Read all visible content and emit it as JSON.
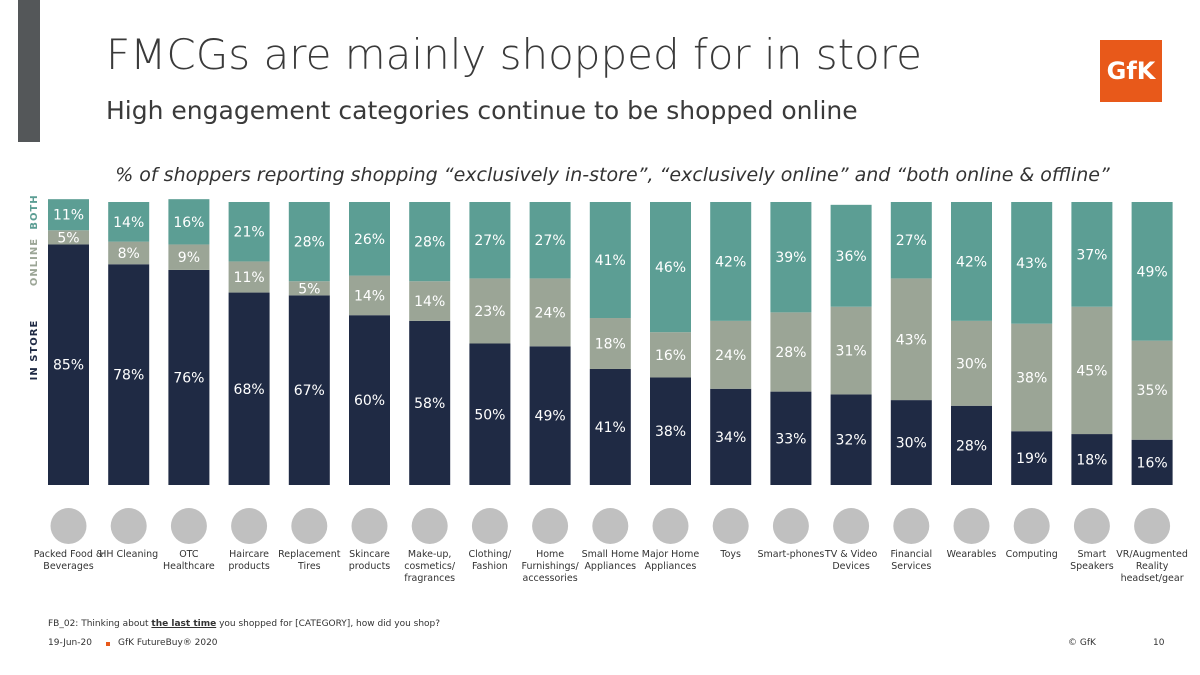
{
  "header": {
    "title": "FMCGs are mainly shopped for in store",
    "subtitle": "High engagement categories continue to be shopped online",
    "logo": "GfK"
  },
  "chart_data": {
    "type": "stacked-bar",
    "title": "% of shoppers reporting shopping “exclusively in-store”, “exclusively online” and “both online & offline”",
    "categories": [
      "Packed Food & Beverages",
      "HH Cleaning",
      "OTC Healthcare",
      "Haircare products",
      "Replacement Tires",
      "Skincare products",
      "Make-up, cosmetics/ fragrances",
      "Clothing/ Fashion",
      "Home Furnishings/ accessories",
      "Small Home Appliances",
      "Major Home Appliances",
      "Toys",
      "Smart-phones",
      "TV & Video Devices",
      "Financial Services",
      "Wearables",
      "Computing",
      "Smart Speakers",
      "VR/Augmented Reality headset/gear"
    ],
    "ylim": [
      0,
      100
    ],
    "series": [
      {
        "name": "IN STORE",
        "color": "#1f2a44",
        "values": [
          85,
          78,
          76,
          68,
          67,
          60,
          58,
          50,
          49,
          41,
          38,
          34,
          33,
          32,
          30,
          28,
          19,
          18,
          16
        ],
        "value_labels": [
          "85%",
          "78%",
          "76%",
          "68%",
          "67%",
          "60%",
          "58%",
          "50%",
          "49%",
          "41%",
          "38%",
          "34%",
          "33%",
          "32%",
          "30%",
          "28%",
          "19%",
          "18%",
          "16%"
        ]
      },
      {
        "name": "ONLINE",
        "color": "#9ba596",
        "values": [
          5,
          8,
          9,
          11,
          5,
          14,
          14,
          23,
          24,
          18,
          16,
          24,
          28,
          31,
          43,
          30,
          38,
          45,
          35
        ],
        "value_labels": [
          "5%",
          "8%",
          "9%",
          "11%",
          "5%",
          "14%",
          "14%",
          "23%",
          "24%",
          "18%",
          "16%",
          "24%",
          "28%",
          "31%",
          "43%",
          "30%",
          "38%",
          "45%",
          "35%"
        ]
      },
      {
        "name": "BOTH",
        "color": "#5c9e94",
        "values": [
          11,
          14,
          16,
          21,
          28,
          26,
          28,
          27,
          27,
          41,
          46,
          42,
          39,
          36,
          27,
          42,
          43,
          37,
          49
        ],
        "value_labels": [
          "11%",
          "14%",
          "16%",
          "21%",
          "28%",
          "26%",
          "28%",
          "27%",
          "27%",
          "41%",
          "46%",
          "42%",
          "39%",
          "36%",
          "27%",
          "42%",
          "43%",
          "37%",
          "49%"
        ]
      }
    ]
  },
  "footer": {
    "question_start": "FB_02: Thinking about ",
    "question_emphasis": "the last time",
    "question_end": " you shopped for [CATEGORY], how did you shop?",
    "date": "19-Jun-20",
    "source": "GfK FutureBuy® 2020",
    "copyright": "© GfK",
    "page": "10"
  }
}
